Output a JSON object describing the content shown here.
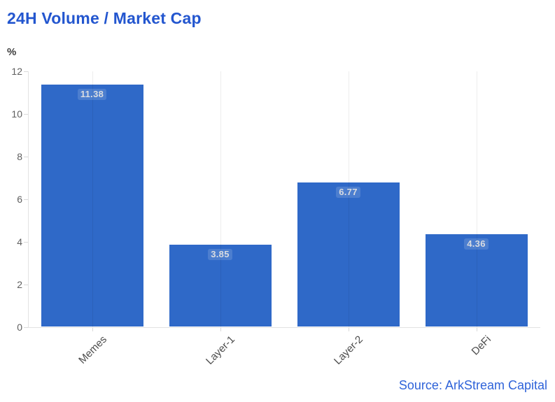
{
  "header": {
    "title": "24H Volume / Market Cap",
    "title_color": "#2356cf"
  },
  "chart_data": {
    "type": "bar",
    "title": "24H Volume / Market Cap",
    "unit_label": "%",
    "categories": [
      "Memes",
      "Layer-1",
      "Layer-2",
      "DeFi"
    ],
    "values": [
      11.38,
      3.85,
      6.77,
      4.36
    ],
    "value_labels": [
      "11.38",
      "3.85",
      "6.77",
      "4.36"
    ],
    "ylim": [
      0,
      12
    ],
    "yticks": [
      12,
      10,
      8,
      6,
      4,
      2,
      0
    ],
    "ytick_step": 2,
    "grid": "vertical-category-gridlines-only",
    "legend": "none",
    "bar_color": "#2f69c8",
    "value_label_color": "#d9dce1",
    "axis_color": "#e2e2e2",
    "tick_label_color": "#5f5f5f",
    "category_label_color": "#4c4c4c",
    "category_label_rotation_deg": 45
  },
  "footer": {
    "source": "Source: ArkStream Capital",
    "source_color": "#2f63d9"
  }
}
